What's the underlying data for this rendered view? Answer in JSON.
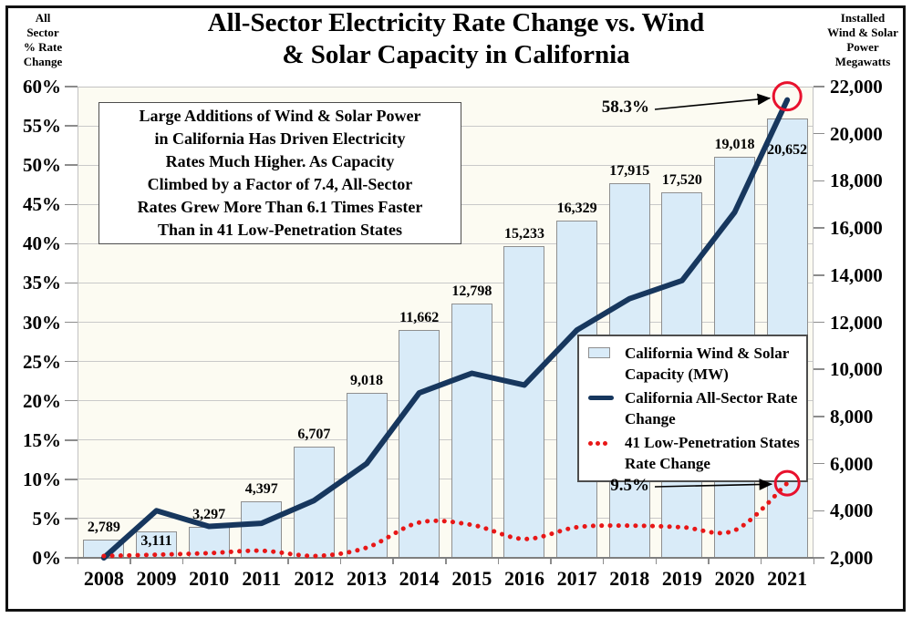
{
  "title": "All-Sector Electricity Rate Change vs. Wind\n& Solar Capacity in California",
  "left_axis_title": "All\nSector\n% Rate\nChange",
  "right_axis_title": "Installed\nWind & Solar\nPower\nMegawatts",
  "note_box": "Large Additions of Wind & Solar Power\nin California Has Driven Electricity\nRates Much Higher. As Capacity\nClimbed by a Factor of 7.4, All-Sector\nRates Grew More Than 6.1 Times Faster\nThan in 41 Low-Penetration States",
  "annotations": {
    "line_end_label": "58.3%",
    "dotted_end_label": "9.5%"
  },
  "legend": {
    "items": [
      {
        "label": "California Wind & Solar Capacity (MW)"
      },
      {
        "label": "California All-Sector Rate Change"
      },
      {
        "label": "41 Low-Penetration States Rate Change"
      }
    ]
  },
  "colors": {
    "bar_fill": "#d9ebf8",
    "bar_border": "#8f8f8f",
    "rate_line": "#17375e",
    "dotted_line": "#e81717",
    "circle": "#e8112d",
    "grid": "#c9c9c9",
    "axis": "#7f7f7f",
    "plot_bg": "#fcfbf2"
  },
  "chart_data": {
    "type": "bar",
    "subtype": "combo bar + two lines, dual axis",
    "categories": [
      "2008",
      "2009",
      "2010",
      "2011",
      "2012",
      "2013",
      "2014",
      "2015",
      "2016",
      "2017",
      "2018",
      "2019",
      "2020",
      "2021"
    ],
    "series": [
      {
        "name": "California Wind & Solar Capacity (MW)",
        "type": "bar",
        "axis": "right",
        "values": [
          2789,
          3111,
          3297,
          4397,
          6707,
          9018,
          11662,
          12798,
          15233,
          16329,
          17915,
          17520,
          19018,
          20652
        ],
        "labels": [
          "2,789",
          "3,111",
          "3,297",
          "4,397",
          "6,707",
          "9,018",
          "11,662",
          "12,798",
          "15,233",
          "16,329",
          "17,915",
          "17,520",
          "19,018",
          "20,652"
        ],
        "label_positions": [
          "above",
          "inside",
          "above",
          "above",
          "above",
          "above",
          "above",
          "above",
          "above",
          "above",
          "above",
          "above",
          "above",
          "inside-low"
        ]
      },
      {
        "name": "California All-Sector Rate Change",
        "type": "line",
        "axis": "left",
        "values": [
          0,
          6,
          4,
          4.4,
          7.3,
          12,
          21,
          23.5,
          22,
          29,
          33,
          35.3,
          44,
          58.3
        ],
        "end_label": "58.3%"
      },
      {
        "name": "41 Low-Penetration States Rate Change",
        "type": "dotted-line",
        "axis": "left",
        "values": [
          0.1,
          0.4,
          0.6,
          0.9,
          0.1,
          1.3,
          4.5,
          4.2,
          2.4,
          3.9,
          4.1,
          3.9,
          3.5,
          9.5
        ],
        "end_label": "9.5%"
      }
    ],
    "left_axis": {
      "min": 0,
      "max": 60,
      "step": 5,
      "tick_labels": [
        "0%",
        "5%",
        "10%",
        "15%",
        "20%",
        "25%",
        "30%",
        "35%",
        "40%",
        "45%",
        "50%",
        "55%",
        "60%"
      ]
    },
    "right_axis": {
      "min": 2000,
      "max": 22000,
      "step": 2000,
      "tick_labels": [
        "2,000",
        "4,000",
        "6,000",
        "8,000",
        "10,000",
        "12,000",
        "14,000",
        "16,000",
        "18,000",
        "20,000",
        "22,000"
      ]
    },
    "grid": "horizontal only, every 5% of left axis",
    "legend_position": "inside right, boxed"
  }
}
